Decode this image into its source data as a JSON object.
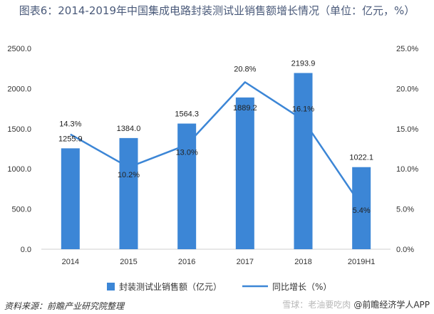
{
  "title": "图表6：2014-2019年中国集成电路封装测试业销售额增长情况（单位：亿元，%）",
  "source": "资料来源：前瞻产业研究院整理",
  "credit": "@前瞻经济学人APP",
  "watermark": "雪球：老油要吃肉",
  "chart_data": {
    "type": "bar",
    "categories": [
      "2014",
      "2015",
      "2016",
      "2017",
      "2018",
      "2019H1"
    ],
    "series": [
      {
        "name": "封装测试业销售额（亿元）",
        "type": "bar",
        "axis": "left",
        "color": "#3c86d6",
        "values": [
          1255.9,
          1384.0,
          1564.3,
          1889.2,
          2193.9,
          1022.1
        ],
        "labels": [
          "1255.9",
          "1384.0",
          "1564.3",
          "1889.2",
          "2193.9",
          "1022.1"
        ]
      },
      {
        "name": "同比增长（%）",
        "type": "line",
        "axis": "right",
        "color": "#3c86d6",
        "values": [
          14.3,
          10.2,
          13.0,
          20.8,
          16.1,
          5.4
        ],
        "labels": [
          "14.3%",
          "10.2%",
          "13.0%",
          "20.8%",
          "16.1%",
          "5.4%"
        ]
      }
    ],
    "y_left": {
      "min": 0,
      "max": 2500,
      "ticks": [
        "0.0",
        "500.0",
        "1000.0",
        "1500.0",
        "2000.0",
        "2500.0"
      ]
    },
    "y_right": {
      "min": 0,
      "max": 25,
      "ticks": [
        "0.0%",
        "5.0%",
        "10.0%",
        "15.0%",
        "20.0%",
        "25.0%"
      ]
    },
    "grid": false,
    "legend_position": "bottom"
  }
}
